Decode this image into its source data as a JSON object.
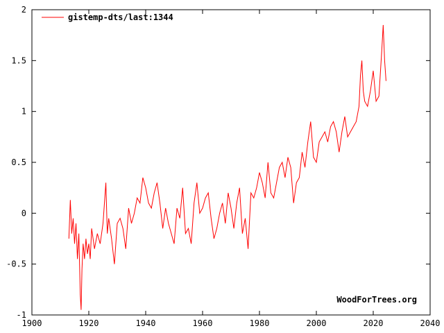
{
  "chart_data": {
    "type": "line",
    "title": "",
    "xlabel": "",
    "ylabel": "",
    "xlim": [
      1900,
      2040
    ],
    "ylim": [
      -1,
      2
    ],
    "x_ticks": [
      "1900",
      "1920",
      "1940",
      "1960",
      "1980",
      "2000",
      "2020",
      "2040"
    ],
    "y_ticks": [
      "-1",
      "-0.5",
      "0",
      "0.5",
      "1",
      "1.5",
      "2"
    ],
    "grid": false,
    "legend_position": "top-left",
    "series": [
      {
        "name": "gistemp-dts/last:1344",
        "color": "#ff0000",
        "x": [
          1913.0,
          1913.5,
          1914.0,
          1914.5,
          1915.0,
          1915.5,
          1916.0,
          1916.5,
          1917.0,
          1917.3,
          1917.6,
          1918.0,
          1918.5,
          1919.0,
          1919.5,
          1920.0,
          1920.5,
          1921.0,
          1922.0,
          1923.0,
          1924.0,
          1925.0,
          1926.0,
          1926.5,
          1927.0,
          1928.0,
          1929.0,
          1930.0,
          1931.0,
          1932.0,
          1933.0,
          1934.0,
          1935.0,
          1936.0,
          1937.0,
          1938.0,
          1939.0,
          1940.0,
          1941.0,
          1942.0,
          1943.0,
          1944.0,
          1945.0,
          1946.0,
          1947.0,
          1948.0,
          1949.0,
          1950.0,
          1951.0,
          1952.0,
          1953.0,
          1954.0,
          1955.0,
          1956.0,
          1957.0,
          1958.0,
          1959.0,
          1960.0,
          1961.0,
          1962.0,
          1963.0,
          1964.0,
          1965.0,
          1966.0,
          1967.0,
          1968.0,
          1969.0,
          1970.0,
          1971.0,
          1972.0,
          1973.0,
          1974.0,
          1975.0,
          1976.0,
          1977.0,
          1978.0,
          1979.0,
          1980.0,
          1981.0,
          1982.0,
          1983.0,
          1984.0,
          1985.0,
          1986.0,
          1987.0,
          1988.0,
          1989.0,
          1990.0,
          1991.0,
          1992.0,
          1993.0,
          1994.0,
          1995.0,
          1996.0,
          1997.0,
          1998.0,
          1999.0,
          2000.0,
          2001.0,
          2002.0,
          2003.0,
          2004.0,
          2005.0,
          2006.0,
          2007.0,
          2008.0,
          2009.0,
          2010.0,
          2011.0,
          2012.0,
          2013.0,
          2014.0,
          2015.0,
          2015.5,
          2016.0,
          2016.5,
          2017.0,
          2018.0,
          2019.0,
          2020.0,
          2020.5,
          2021.0,
          2022.0,
          2023.0,
          2023.5,
          2024.0,
          2024.5
        ],
        "y": [
          -0.25,
          0.13,
          -0.2,
          -0.05,
          -0.3,
          -0.1,
          -0.45,
          -0.2,
          -0.8,
          -0.95,
          -0.55,
          -0.3,
          -0.45,
          -0.25,
          -0.4,
          -0.3,
          -0.45,
          -0.15,
          -0.35,
          -0.2,
          -0.3,
          -0.1,
          0.3,
          -0.2,
          -0.05,
          -0.25,
          -0.5,
          -0.1,
          -0.05,
          -0.15,
          -0.35,
          0.05,
          -0.1,
          0.0,
          0.15,
          0.1,
          0.35,
          0.25,
          0.1,
          0.05,
          0.2,
          0.3,
          0.1,
          -0.15,
          0.05,
          -0.1,
          -0.2,
          -0.3,
          0.05,
          -0.05,
          0.25,
          -0.2,
          -0.15,
          -0.3,
          0.1,
          0.3,
          0.0,
          0.05,
          0.15,
          0.2,
          -0.05,
          -0.25,
          -0.15,
          0.0,
          0.1,
          -0.1,
          0.2,
          0.05,
          -0.15,
          0.1,
          0.25,
          -0.2,
          -0.05,
          -0.35,
          0.2,
          0.15,
          0.25,
          0.4,
          0.3,
          0.15,
          0.5,
          0.2,
          0.15,
          0.3,
          0.45,
          0.5,
          0.35,
          0.55,
          0.45,
          0.1,
          0.3,
          0.35,
          0.6,
          0.45,
          0.7,
          0.9,
          0.55,
          0.5,
          0.7,
          0.75,
          0.8,
          0.7,
          0.85,
          0.9,
          0.8,
          0.6,
          0.8,
          0.95,
          0.75,
          0.8,
          0.85,
          0.9,
          1.05,
          1.35,
          1.5,
          1.2,
          1.1,
          1.05,
          1.2,
          1.4,
          1.25,
          1.1,
          1.15,
          1.6,
          1.85,
          1.5,
          1.3
        ]
      }
    ]
  },
  "credit": "WoodForTrees.org"
}
